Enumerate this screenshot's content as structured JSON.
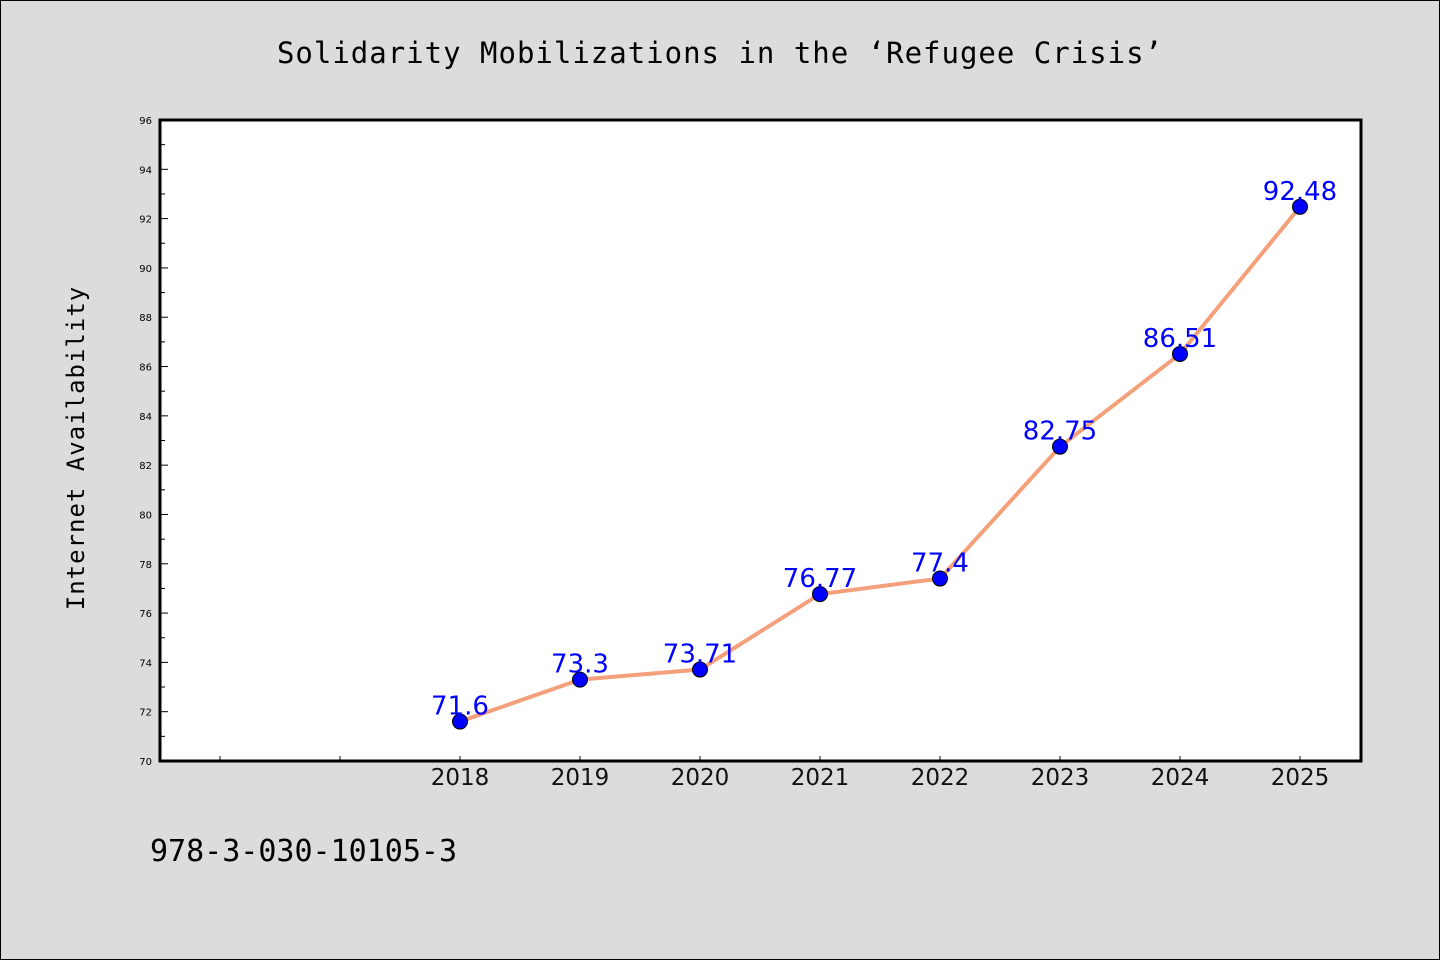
{
  "chart_data": {
    "type": "line",
    "title": "Solidarity Mobilizations in the ‘Refugee Crisis’",
    "xlabel": "",
    "ylabel": "Internet Availability",
    "categories": [
      "2018",
      "2019",
      "2020",
      "2021",
      "2022",
      "2023",
      "2024",
      "2025"
    ],
    "series": [
      {
        "values": [
          71.6,
          73.3,
          73.71,
          76.77,
          77.4,
          82.75,
          86.51,
          92.48
        ],
        "labels": [
          "71.6",
          "73.3",
          "73.71",
          "76.77",
          "77.4",
          "82.75",
          "86.51",
          "92.48"
        ],
        "line_color": "#f4a07a",
        "marker_color": "#0000ff"
      }
    ],
    "ylim": [
      70,
      96
    ],
    "yticks": [
      "70",
      "72",
      "74",
      "76",
      "78",
      "80",
      "82",
      "84",
      "86",
      "88",
      "90",
      "92",
      "94",
      "96"
    ],
    "grid": false,
    "legend": "none"
  },
  "footer": {
    "isbn": "978-3-030-10105-3"
  }
}
